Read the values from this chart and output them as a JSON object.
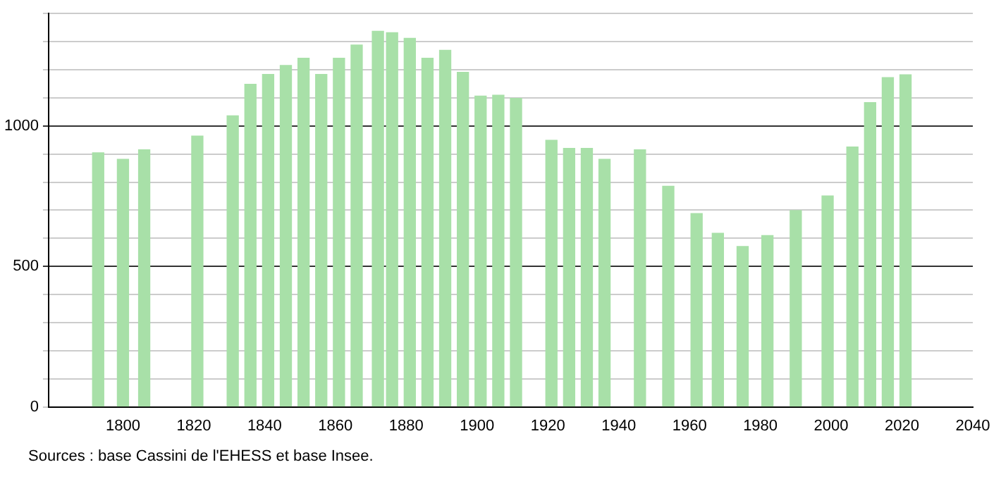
{
  "chart_data": {
    "type": "bar",
    "x": [
      1793,
      1800,
      1806,
      1821,
      1831,
      1836,
      1841,
      1846,
      1851,
      1856,
      1861,
      1866,
      1872,
      1876,
      1881,
      1886,
      1891,
      1896,
      1901,
      1906,
      1911,
      1921,
      1926,
      1931,
      1936,
      1946,
      1954,
      1962,
      1968,
      1975,
      1982,
      1990,
      1999,
      2006,
      2011,
      2016,
      2021
    ],
    "values": [
      904,
      881,
      915,
      964,
      1036,
      1148,
      1183,
      1215,
      1241,
      1183,
      1241,
      1288,
      1337,
      1332,
      1312,
      1241,
      1269,
      1191,
      1106,
      1109,
      1098,
      949,
      920,
      920,
      881,
      915,
      785,
      688,
      618,
      571,
      610,
      699,
      751,
      925,
      1083,
      1172,
      1182
    ],
    "color": "#a8e0a8",
    "xlim": [
      1779,
      2040
    ],
    "xticks": [
      1800,
      1820,
      1840,
      1860,
      1880,
      1900,
      1920,
      1940,
      1960,
      1980,
      2000,
      2020,
      2040
    ],
    "ylim": [
      0,
      1400
    ],
    "yticks": [
      0,
      {
        "value": 100,
        "label": null
      },
      {
        "value": 200,
        "label": null
      },
      {
        "value": 300,
        "label": null
      },
      {
        "value": 400,
        "label": null
      },
      500,
      {
        "value": 600,
        "label": null
      },
      {
        "value": 700,
        "label": null
      },
      {
        "value": 800,
        "label": null
      },
      {
        "value": 900,
        "label": null
      },
      1000,
      {
        "value": 1100,
        "label": null
      },
      {
        "value": 1200,
        "label": null
      },
      {
        "value": 1300,
        "label": null
      },
      {
        "value": 1400,
        "label": null
      }
    ],
    "grid": "y",
    "annotations": [
      "Sources : base Cassini de l'EHESS et base Insee."
    ]
  }
}
